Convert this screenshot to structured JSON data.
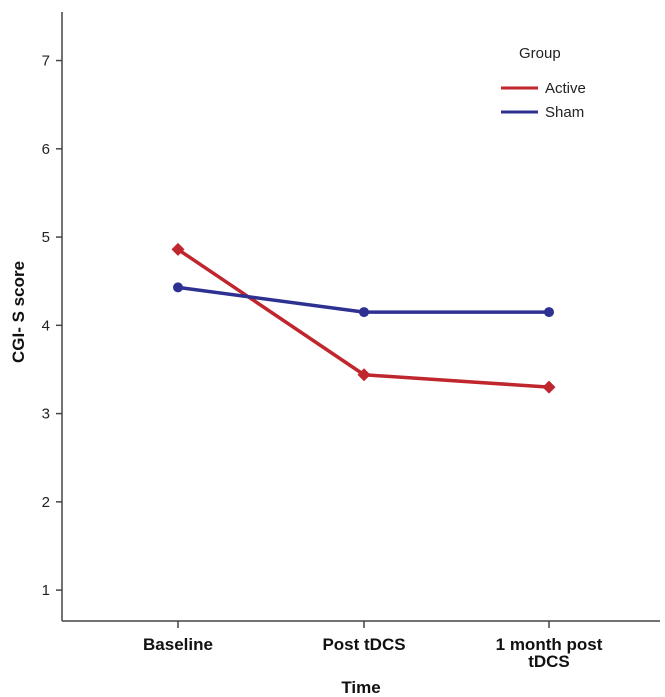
{
  "chart_data": {
    "type": "line",
    "xlabel": "Time",
    "ylabel": "CGI- S score",
    "categories": [
      "Baseline",
      "Post tDCS",
      "1 month post tDCS"
    ],
    "category_lines": [
      [
        "Baseline"
      ],
      [
        "Post tDCS"
      ],
      [
        "1 month post",
        "tDCS"
      ]
    ],
    "yticks": [
      1,
      2,
      3,
      4,
      5,
      6,
      7
    ],
    "ylim": [
      0.65,
      7.55
    ],
    "grid": false,
    "legend": {
      "title": "Group",
      "placement": "top-right"
    },
    "series": [
      {
        "name": "Active",
        "color": "#c0262d",
        "marker": "diamond",
        "values": [
          4.86,
          3.44,
          3.3
        ]
      },
      {
        "name": "Sham",
        "color": "#2e3192",
        "marker": "circle",
        "values": [
          4.43,
          4.15,
          4.15
        ]
      }
    ]
  }
}
